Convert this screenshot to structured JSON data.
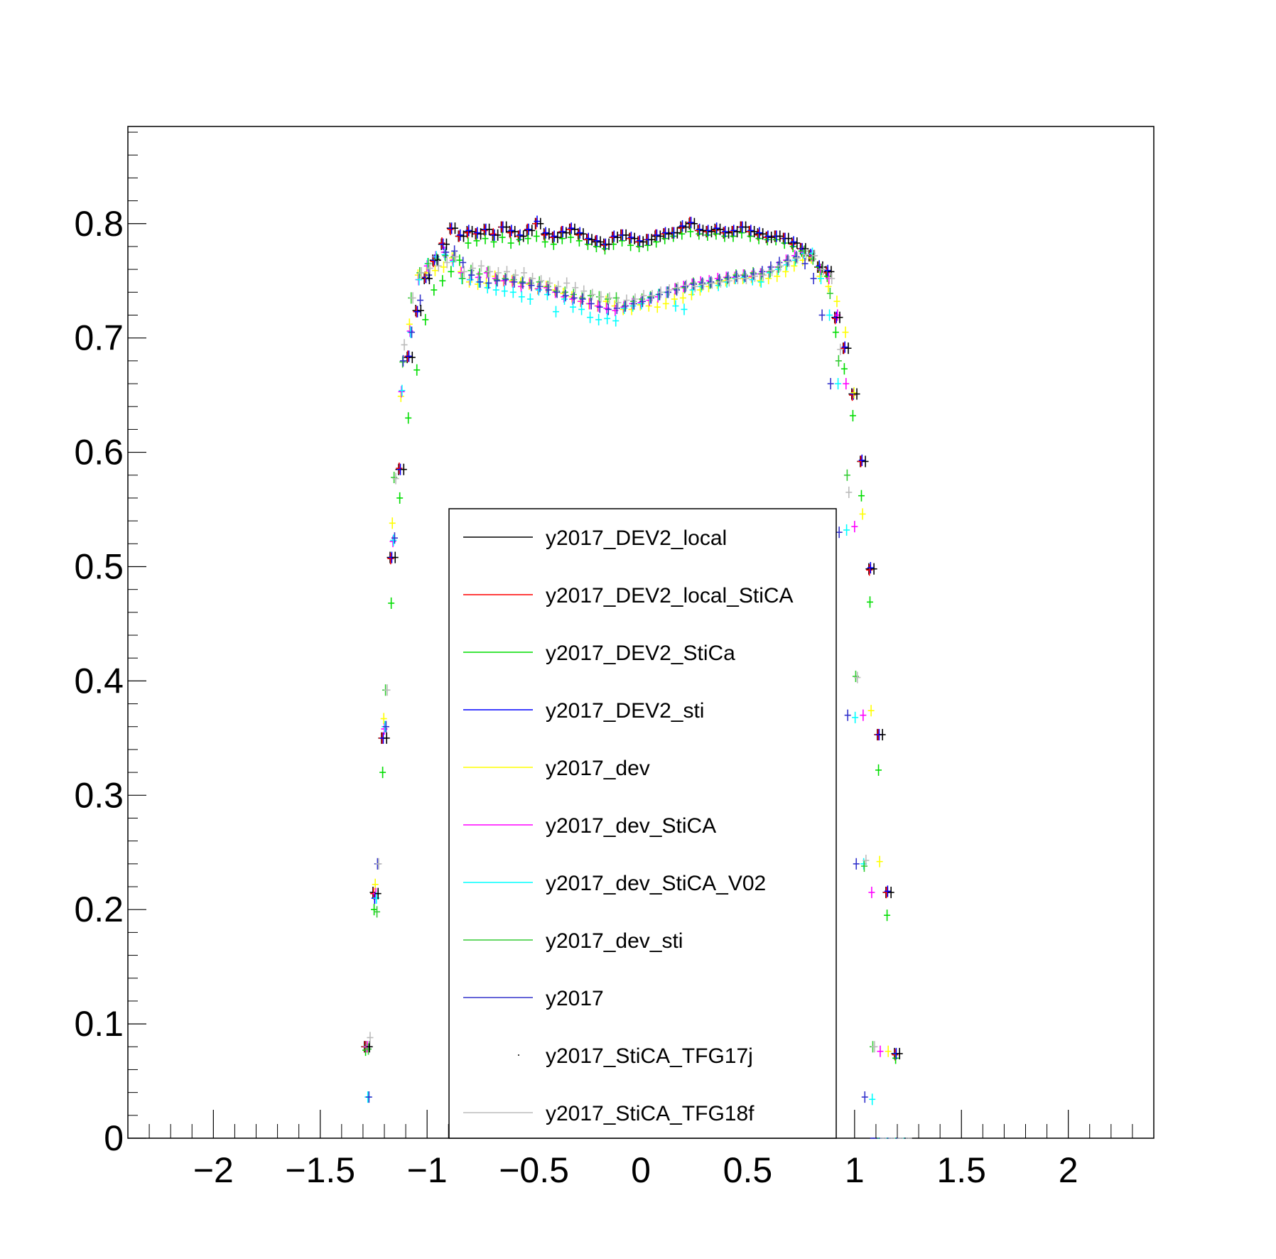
{
  "chart_data": {
    "type": "scatter",
    "title": "",
    "xlabel": "",
    "ylabel": "",
    "xlim": [
      -2.4,
      2.4
    ],
    "ylim": [
      0,
      0.885
    ],
    "x_ticks": [
      {
        "value": -2,
        "label": "−2"
      },
      {
        "value": -1.5,
        "label": "−1.5"
      },
      {
        "value": -1,
        "label": "−1"
      },
      {
        "value": -0.5,
        "label": "−0.5"
      },
      {
        "value": 0,
        "label": "0"
      },
      {
        "value": 0.5,
        "label": "0.5"
      },
      {
        "value": 1,
        "label": "1"
      },
      {
        "value": 1.5,
        "label": "1.5"
      },
      {
        "value": 2,
        "label": "2"
      }
    ],
    "y_ticks": [
      {
        "value": 0,
        "label": "0"
      },
      {
        "value": 0.1,
        "label": "0.1"
      },
      {
        "value": 0.2,
        "label": "0.2"
      },
      {
        "value": 0.3,
        "label": "0.3"
      },
      {
        "value": 0.4,
        "label": "0.4"
      },
      {
        "value": 0.5,
        "label": "0.5"
      },
      {
        "value": 0.6,
        "label": "0.6"
      },
      {
        "value": 0.7,
        "label": "0.7"
      },
      {
        "value": 0.8,
        "label": "0.8"
      }
    ],
    "grid": false,
    "legend_position": "center-bottom",
    "error_bars": true,
    "x": [
      -1.28,
      -1.24,
      -1.2,
      -1.16,
      -1.12,
      -1.08,
      -1.04,
      -1.0,
      -0.96,
      -0.92,
      -0.88,
      -0.84,
      -0.8,
      -0.76,
      -0.72,
      -0.68,
      -0.64,
      -0.6,
      -0.56,
      -0.52,
      -0.48,
      -0.44,
      -0.4,
      -0.36,
      -0.32,
      -0.28,
      -0.24,
      -0.2,
      -0.16,
      -0.12,
      -0.08,
      -0.04,
      0.0,
      0.04,
      0.08,
      0.12,
      0.16,
      0.2,
      0.24,
      0.28,
      0.32,
      0.36,
      0.4,
      0.44,
      0.48,
      0.52,
      0.56,
      0.6,
      0.64,
      0.68,
      0.72,
      0.76,
      0.8,
      0.84,
      0.88,
      0.92,
      0.96,
      1.0,
      1.04,
      1.08,
      1.12,
      1.16,
      1.2,
      1.24
    ],
    "series": [
      {
        "name": "y2017_DEV2_local",
        "color": "#000000",
        "values": [
          0.08,
          0.215,
          0.35,
          0.508,
          0.585,
          0.683,
          0.724,
          0.752,
          0.768,
          0.782,
          0.796,
          0.789,
          0.793,
          0.791,
          0.795,
          0.79,
          0.797,
          0.793,
          0.789,
          0.794,
          0.8,
          0.791,
          0.788,
          0.792,
          0.795,
          0.791,
          0.786,
          0.784,
          0.782,
          0.788,
          0.79,
          0.787,
          0.784,
          0.786,
          0.789,
          0.791,
          0.792,
          0.797,
          0.8,
          0.794,
          0.793,
          0.795,
          0.792,
          0.793,
          0.797,
          0.793,
          0.791,
          0.788,
          0.789,
          0.787,
          0.783,
          0.778,
          0.772,
          0.762,
          0.758,
          0.718,
          0.691,
          0.651,
          0.592,
          0.498,
          0.353,
          0.215,
          0.074,
          0.0
        ]
      },
      {
        "name": "y2017_DEV2_local_StiCA",
        "color": "#ff0000",
        "values": [
          0.08,
          0.214,
          0.35,
          0.507,
          0.586,
          0.684,
          0.723,
          0.753,
          0.767,
          0.783,
          0.795,
          0.789,
          0.792,
          0.791,
          0.794,
          0.791,
          0.797,
          0.792,
          0.789,
          0.795,
          0.8,
          0.79,
          0.788,
          0.793,
          0.795,
          0.79,
          0.786,
          0.785,
          0.781,
          0.788,
          0.79,
          0.787,
          0.784,
          0.786,
          0.79,
          0.791,
          0.792,
          0.796,
          0.801,
          0.794,
          0.793,
          0.794,
          0.792,
          0.793,
          0.797,
          0.793,
          0.79,
          0.788,
          0.789,
          0.787,
          0.782,
          0.778,
          0.772,
          0.762,
          0.757,
          0.717,
          0.691,
          0.65,
          0.592,
          0.497,
          0.353,
          0.215,
          0.073,
          0.0
        ]
      },
      {
        "name": "y2017_DEV2_StiCa",
        "color": "#00dd00",
        "values": [
          0.077,
          0.2,
          0.32,
          0.468,
          0.56,
          0.63,
          0.672,
          0.716,
          0.742,
          0.75,
          0.758,
          0.768,
          0.783,
          0.785,
          0.787,
          0.784,
          0.788,
          0.783,
          0.786,
          0.787,
          0.789,
          0.784,
          0.782,
          0.787,
          0.788,
          0.785,
          0.782,
          0.78,
          0.778,
          0.782,
          0.785,
          0.781,
          0.78,
          0.781,
          0.784,
          0.787,
          0.789,
          0.791,
          0.793,
          0.791,
          0.79,
          0.791,
          0.789,
          0.789,
          0.792,
          0.789,
          0.787,
          0.786,
          0.786,
          0.783,
          0.78,
          0.776,
          0.772,
          0.762,
          0.754,
          0.705,
          0.673,
          0.632,
          0.562,
          0.469,
          0.322,
          0.195,
          0.07,
          0.0
        ]
      },
      {
        "name": "y2017_DEV2_sti",
        "color": "#0000ff",
        "values": [
          0.08,
          0.21,
          0.35,
          0.508,
          0.585,
          0.684,
          0.723,
          0.753,
          0.768,
          0.782,
          0.796,
          0.79,
          0.794,
          0.792,
          0.795,
          0.79,
          0.797,
          0.794,
          0.79,
          0.795,
          0.802,
          0.792,
          0.789,
          0.793,
          0.796,
          0.792,
          0.787,
          0.785,
          0.782,
          0.789,
          0.79,
          0.788,
          0.785,
          0.786,
          0.79,
          0.792,
          0.792,
          0.798,
          0.801,
          0.795,
          0.794,
          0.796,
          0.793,
          0.794,
          0.797,
          0.794,
          0.792,
          0.789,
          0.789,
          0.787,
          0.784,
          0.778,
          0.773,
          0.763,
          0.759,
          0.718,
          0.692,
          0.651,
          0.593,
          0.499,
          0.353,
          0.216,
          0.074,
          0.0
        ]
      },
      {
        "name": "y2017_dev",
        "color": "#ffff00",
        "values": [
          0.08,
          0.222,
          0.367,
          0.538,
          0.649,
          0.712,
          0.755,
          0.757,
          0.759,
          0.762,
          0.77,
          0.758,
          0.749,
          0.747,
          0.748,
          0.754,
          0.75,
          0.75,
          0.748,
          0.747,
          0.743,
          0.745,
          0.742,
          0.739,
          0.736,
          0.732,
          0.73,
          0.728,
          0.732,
          0.728,
          0.725,
          0.725,
          0.729,
          0.728,
          0.727,
          0.73,
          0.734,
          0.735,
          0.738,
          0.742,
          0.745,
          0.748,
          0.75,
          0.752,
          0.752,
          0.753,
          0.75,
          0.752,
          0.754,
          0.758,
          0.763,
          0.768,
          0.77,
          0.754,
          0.745,
          0.732,
          0.705,
          0.652,
          0.546,
          0.374,
          0.242,
          0.076,
          0.0,
          0.0
        ]
      },
      {
        "name": "y2017_dev_StiCA",
        "color": "#ff00ff",
        "values": [
          0.08,
          0.214,
          0.358,
          0.522,
          0.653,
          0.706,
          0.751,
          0.763,
          0.771,
          0.775,
          0.768,
          0.757,
          0.751,
          0.753,
          0.757,
          0.752,
          0.75,
          0.749,
          0.745,
          0.748,
          0.743,
          0.744,
          0.74,
          0.736,
          0.734,
          0.732,
          0.73,
          0.728,
          0.726,
          0.724,
          0.727,
          0.73,
          0.731,
          0.733,
          0.736,
          0.74,
          0.743,
          0.745,
          0.747,
          0.749,
          0.75,
          0.752,
          0.753,
          0.753,
          0.755,
          0.754,
          0.756,
          0.758,
          0.762,
          0.768,
          0.772,
          0.775,
          0.772,
          0.76,
          0.752,
          0.72,
          0.66,
          0.535,
          0.37,
          0.215,
          0.076,
          0.0,
          0.0,
          0.0
        ]
      },
      {
        "name": "y2017_dev_StiCA_V02",
        "color": "#00ffff",
        "values": [
          0.036,
          0.21,
          0.36,
          0.523,
          0.654,
          0.705,
          0.751,
          0.765,
          0.771,
          0.773,
          0.767,
          0.752,
          0.751,
          0.749,
          0.744,
          0.742,
          0.741,
          0.74,
          0.736,
          0.734,
          0.742,
          0.738,
          0.723,
          0.734,
          0.727,
          0.725,
          0.718,
          0.716,
          0.717,
          0.715,
          0.726,
          0.728,
          0.73,
          0.735,
          0.738,
          0.74,
          0.728,
          0.725,
          0.742,
          0.745,
          0.748,
          0.746,
          0.749,
          0.752,
          0.753,
          0.751,
          0.749,
          0.757,
          0.76,
          0.764,
          0.768,
          0.774,
          0.774,
          0.752,
          0.72,
          0.66,
          0.532,
          0.368,
          0.24,
          0.034,
          0.0,
          0.0,
          0.0,
          0.0
        ]
      },
      {
        "name": "y2017_dev_sti",
        "color": "#33cc33",
        "values": [
          0.078,
          0.198,
          0.392,
          0.578,
          0.679,
          0.735,
          0.757,
          0.765,
          0.769,
          0.772,
          0.771,
          0.752,
          0.759,
          0.756,
          0.758,
          0.751,
          0.752,
          0.751,
          0.749,
          0.748,
          0.749,
          0.745,
          0.741,
          0.74,
          0.738,
          0.735,
          0.737,
          0.736,
          0.734,
          0.735,
          0.728,
          0.732,
          0.734,
          0.736,
          0.738,
          0.74,
          0.743,
          0.744,
          0.748,
          0.747,
          0.748,
          0.75,
          0.752,
          0.755,
          0.755,
          0.757,
          0.756,
          0.758,
          0.762,
          0.767,
          0.77,
          0.776,
          0.769,
          0.76,
          0.739,
          0.68,
          0.58,
          0.404,
          0.238,
          0.08,
          0.0,
          0.0,
          0.0,
          0.0
        ]
      },
      {
        "name": "y2017",
        "color": "#3333cc",
        "values": [
          0.036,
          0.24,
          0.36,
          0.525,
          0.68,
          0.705,
          0.733,
          0.755,
          0.768,
          0.775,
          0.776,
          0.766,
          0.755,
          0.749,
          0.748,
          0.75,
          0.751,
          0.749,
          0.748,
          0.746,
          0.745,
          0.742,
          0.74,
          0.737,
          0.735,
          0.734,
          0.73,
          0.727,
          0.725,
          0.726,
          0.728,
          0.73,
          0.732,
          0.735,
          0.738,
          0.74,
          0.742,
          0.745,
          0.747,
          0.748,
          0.749,
          0.751,
          0.753,
          0.754,
          0.754,
          0.756,
          0.758,
          0.762,
          0.766,
          0.768,
          0.771,
          0.765,
          0.752,
          0.72,
          0.66,
          0.53,
          0.37,
          0.24,
          0.036,
          0.0,
          0.0,
          0.0,
          0.0,
          0.0
        ]
      },
      {
        "name": "y2017_StiCA_TFG17j",
        "color": "#000000",
        "values": [
          0.08,
          0.214,
          0.35,
          0.508,
          0.585,
          0.683,
          0.724,
          0.752,
          0.768,
          0.782,
          0.796,
          0.789,
          0.793,
          0.791,
          0.795,
          0.79,
          0.797,
          0.793,
          0.789,
          0.794,
          0.8,
          0.791,
          0.788,
          0.792,
          0.795,
          0.791,
          0.786,
          0.784,
          0.782,
          0.788,
          0.79,
          0.787,
          0.784,
          0.786,
          0.789,
          0.791,
          0.792,
          0.797,
          0.8,
          0.794,
          0.793,
          0.795,
          0.792,
          0.793,
          0.797,
          0.793,
          0.791,
          0.788,
          0.789,
          0.787,
          0.783,
          0.778,
          0.772,
          0.762,
          0.758,
          0.718,
          0.691,
          0.651,
          0.592,
          0.498,
          0.353,
          0.215,
          0.074,
          0.0
        ]
      },
      {
        "name": "y2017_StiCA_TFG18f",
        "color": "#bbbbbb",
        "values": [
          0.088,
          0.24,
          0.392,
          0.577,
          0.694,
          0.735,
          0.757,
          0.761,
          0.763,
          0.766,
          0.771,
          0.758,
          0.761,
          0.763,
          0.758,
          0.757,
          0.758,
          0.755,
          0.757,
          0.752,
          0.75,
          0.748,
          0.745,
          0.748,
          0.744,
          0.741,
          0.738,
          0.736,
          0.735,
          0.731,
          0.733,
          0.734,
          0.737,
          0.737,
          0.74,
          0.742,
          0.744,
          0.746,
          0.745,
          0.747,
          0.748,
          0.749,
          0.75,
          0.752,
          0.752,
          0.754,
          0.755,
          0.759,
          0.763,
          0.767,
          0.77,
          0.773,
          0.772,
          0.76,
          0.752,
          0.69,
          0.565,
          0.403,
          0.243,
          0.08,
          0.0,
          0.0,
          0.0,
          0.0
        ]
      }
    ]
  }
}
